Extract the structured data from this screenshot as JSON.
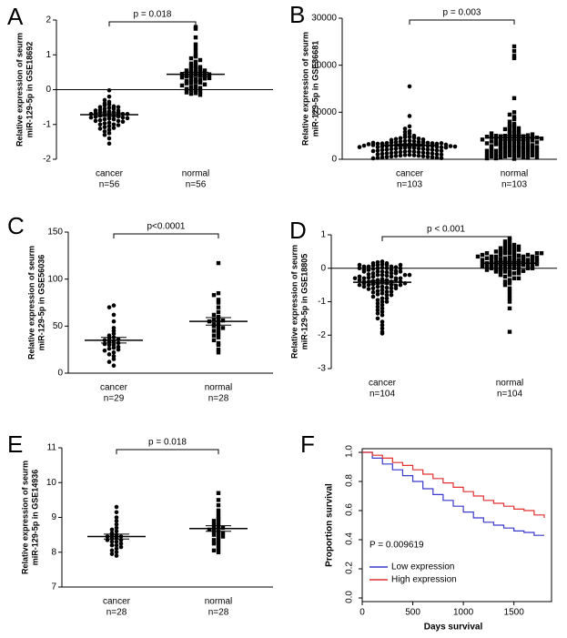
{
  "chart_data": [
    {
      "type": "dotplot",
      "label": "A",
      "ylabel": [
        "Relative expression of seurm",
        "miR-129-5p in GSE18692"
      ],
      "categories": [
        "cancer",
        "normal"
      ],
      "n_labels": [
        "n=56",
        "n=56"
      ],
      "pvalue": "p = 0.018",
      "ylim": [
        -2,
        2
      ],
      "yticks": [
        -2,
        -1,
        0,
        1,
        2
      ],
      "zero_line": true,
      "groups": [
        {
          "mean": -0.72,
          "sem": 0.05,
          "values": [
            -0.02,
            -0.2,
            -0.3,
            -0.35,
            -0.4,
            -0.42,
            -0.45,
            -0.48,
            -0.5,
            -0.5,
            -0.52,
            -0.55,
            -0.55,
            -0.58,
            -0.6,
            -0.6,
            -0.62,
            -0.63,
            -0.65,
            -0.65,
            -0.67,
            -0.68,
            -0.7,
            -0.7,
            -0.7,
            -0.72,
            -0.73,
            -0.75,
            -0.75,
            -0.77,
            -0.78,
            -0.8,
            -0.8,
            -0.82,
            -0.83,
            -0.85,
            -0.85,
            -0.88,
            -0.9,
            -0.9,
            -0.92,
            -0.95,
            -0.97,
            -1.0,
            -1.0,
            -1.02,
            -1.05,
            -1.08,
            -1.1,
            -1.12,
            -1.15,
            -1.2,
            -1.25,
            -1.3,
            -1.4,
            -1.55
          ]
        },
        {
          "mean": 0.44,
          "sem": 0.06,
          "values": [
            1.8,
            1.75,
            1.5,
            1.3,
            1.2,
            1.1,
            1.0,
            0.95,
            0.9,
            0.85,
            0.8,
            0.75,
            0.7,
            0.68,
            0.65,
            0.62,
            0.6,
            0.58,
            0.55,
            0.52,
            0.5,
            0.5,
            0.48,
            0.46,
            0.45,
            0.44,
            0.42,
            0.4,
            0.4,
            0.38,
            0.36,
            0.35,
            0.33,
            0.3,
            0.3,
            0.28,
            0.25,
            0.22,
            0.2,
            0.2,
            0.18,
            0.15,
            0.12,
            0.1,
            0.08,
            0.05,
            0.02,
            0.0,
            -0.02,
            -0.05,
            -0.08,
            -0.1,
            -0.12,
            -0.15,
            0.32,
            0.55
          ]
        }
      ]
    },
    {
      "type": "dotplot",
      "label": "B",
      "ylabel": [
        "Relative expression of seurm",
        "miR-129-5p in GSE36681"
      ],
      "categories": [
        "cancer",
        "normal"
      ],
      "n_labels": [
        "n=103",
        "n=103"
      ],
      "pvalue": "p = 0.003",
      "ylim": [
        0,
        30000
      ],
      "yticks": [
        0,
        10000,
        20000,
        30000
      ],
      "zero_line": false,
      "groups": [
        {
          "mean": 3000,
          "sem": 250,
          "values": [
            15500,
            9200,
            7000,
            6500,
            6000,
            5800,
            5500,
            5200,
            5000,
            4800,
            4700,
            4600,
            4500,
            4400,
            4300,
            4200,
            4100,
            4000,
            3900,
            3850,
            3800,
            3700,
            3650,
            3600,
            3550,
            3500,
            3450,
            3400,
            3350,
            3300,
            3250,
            3200,
            3150,
            3100,
            3050,
            3000,
            2950,
            2900,
            2850,
            2800,
            2750,
            2700,
            2650,
            2600,
            2550,
            2500,
            2450,
            2400,
            2350,
            2300,
            2250,
            2200,
            2150,
            2100,
            2050,
            2000,
            1950,
            1900,
            1850,
            1800,
            1750,
            1700,
            1650,
            1600,
            1550,
            1500,
            1450,
            1400,
            1350,
            1300,
            1250,
            1200,
            1150,
            1100,
            1050,
            1000,
            950,
            900,
            850,
            800,
            750,
            700,
            650,
            600,
            550,
            500,
            450,
            400,
            350,
            300,
            250,
            200,
            3000,
            3100,
            3200,
            2800,
            2900,
            3300,
            2700,
            2600,
            3400,
            2500,
            3500
          ]
        },
        {
          "mean": 4600,
          "sem": 500,
          "values": [
            24000,
            23000,
            22000,
            21500,
            13000,
            10000,
            9500,
            9000,
            8500,
            8000,
            7500,
            7200,
            7000,
            6800,
            6600,
            6400,
            6200,
            6000,
            5800,
            5600,
            5400,
            5200,
            5000,
            4900,
            4800,
            4700,
            4600,
            4500,
            4400,
            4300,
            4200,
            4100,
            4000,
            3900,
            3800,
            3700,
            3600,
            3500,
            3400,
            3300,
            3200,
            3100,
            3000,
            2900,
            2800,
            2700,
            2600,
            2500,
            2400,
            2300,
            2200,
            2100,
            2000,
            1900,
            1800,
            1700,
            1600,
            1500,
            1400,
            1300,
            1200,
            1100,
            1000,
            900,
            800,
            700,
            600,
            500,
            400,
            300,
            200,
            100,
            4500,
            4700,
            4900,
            5100,
            4600,
            4800,
            5000,
            4400,
            4200,
            4000,
            3800,
            3600,
            3400,
            3200,
            3000,
            2800,
            2600,
            2400,
            2200,
            2000,
            1800,
            1600,
            1400,
            1200,
            1000,
            800,
            600,
            400,
            200,
            5300,
            5500
          ]
        }
      ]
    },
    {
      "type": "dotplot",
      "label": "C",
      "ylabel": [
        "Relative expression of seurm",
        "miR-129-5p in GSE56036"
      ],
      "categories": [
        "cancer",
        "normal"
      ],
      "n_labels": [
        "n=29",
        "n=28"
      ],
      "pvalue": "p<0.0001",
      "ylim": [
        0,
        150
      ],
      "yticks": [
        0,
        50,
        100,
        150
      ],
      "zero_line": false,
      "groups": [
        {
          "mean": 35,
          "sem": 3,
          "values": [
            72,
            70,
            62,
            55,
            48,
            45,
            42,
            40,
            38,
            37,
            36,
            35,
            34,
            33,
            32,
            31,
            30,
            30,
            28,
            27,
            26,
            25,
            24,
            22,
            20,
            18,
            15,
            12,
            8
          ]
        },
        {
          "mean": 55,
          "sem": 4,
          "values": [
            117,
            85,
            83,
            78,
            75,
            70,
            65,
            62,
            60,
            58,
            57,
            56,
            55,
            54,
            52,
            50,
            50,
            48,
            46,
            45,
            42,
            40,
            38,
            35,
            32,
            30,
            25,
            22
          ]
        }
      ]
    },
    {
      "type": "dotplot",
      "label": "D",
      "ylabel": [
        "Relative expression of seurm",
        "miR-129-5p in GSE18805"
      ],
      "categories": [
        "cancer",
        "normal"
      ],
      "n_labels": [
        "n=104",
        "n=104"
      ],
      "pvalue": "p < 0.001",
      "ylim": [
        -3,
        1
      ],
      "yticks": [
        -3,
        -2,
        -1,
        0,
        1
      ],
      "zero_line": true,
      "groups": [
        {
          "mean": -0.42,
          "sem": 0.05,
          "values": [
            0.2,
            0.18,
            0.15,
            0.12,
            0.1,
            0.1,
            0.08,
            0.05,
            0.05,
            0.03,
            0.02,
            0.0,
            0.0,
            -0.02,
            -0.05,
            -0.05,
            -0.08,
            -0.1,
            -0.1,
            -0.12,
            -0.15,
            -0.15,
            -0.18,
            -0.2,
            -0.2,
            -0.22,
            -0.25,
            -0.25,
            -0.28,
            -0.3,
            -0.3,
            -0.32,
            -0.35,
            -0.35,
            -0.38,
            -0.4,
            -0.4,
            -0.42,
            -0.45,
            -0.45,
            -0.48,
            -0.5,
            -0.5,
            -0.52,
            -0.55,
            -0.55,
            -0.58,
            -0.6,
            -0.6,
            -0.62,
            -0.65,
            -0.68,
            -0.7,
            -0.72,
            -0.75,
            -0.78,
            -0.8,
            -0.85,
            -0.9,
            -0.95,
            -1.0,
            -1.05,
            -1.1,
            -1.15,
            -1.2,
            -1.25,
            -1.3,
            -1.35,
            -1.4,
            -1.5,
            -1.6,
            -1.7,
            -1.8,
            -1.9,
            -1.95,
            -0.3,
            -0.35,
            -0.4,
            -0.45,
            -0.5,
            -0.25,
            -0.2,
            -0.15,
            -0.1,
            -0.05,
            0.0,
            0.05,
            0.1,
            -0.3,
            -0.4,
            -0.5,
            -0.6,
            -0.7,
            -0.8,
            -0.9,
            -1.0,
            -0.2,
            -0.1,
            0.0,
            0.1,
            0.15,
            -0.35,
            -0.45,
            -0.55
          ]
        },
        {
          "mean": 0.15,
          "sem": 0.05,
          "values": [
            0.9,
            0.85,
            0.8,
            0.75,
            0.7,
            0.7,
            0.65,
            0.6,
            0.6,
            0.55,
            0.5,
            0.5,
            0.45,
            0.45,
            0.4,
            0.4,
            0.38,
            0.35,
            0.35,
            0.32,
            0.3,
            0.3,
            0.28,
            0.25,
            0.25,
            0.22,
            0.2,
            0.2,
            0.18,
            0.15,
            0.15,
            0.12,
            0.1,
            0.1,
            0.08,
            0.05,
            0.05,
            0.02,
            0.0,
            0.0,
            -0.02,
            -0.05,
            -0.05,
            -0.08,
            -0.1,
            -0.1,
            -0.15,
            -0.2,
            -0.25,
            -0.3,
            -0.35,
            -0.4,
            -0.45,
            -0.5,
            -0.6,
            -0.7,
            -0.8,
            -0.9,
            -1.0,
            -1.2,
            -1.9,
            0.3,
            0.25,
            0.2,
            0.15,
            0.1,
            0.05,
            0.0,
            0.35,
            0.4,
            0.45,
            0.5,
            0.55,
            0.6,
            0.65,
            0.2,
            0.15,
            0.1,
            0.05,
            0.0,
            -0.05,
            -0.1,
            -0.15,
            0.25,
            0.3,
            0.35,
            0.4,
            0.45,
            0.5,
            0.1,
            0.2,
            0.3,
            0.0,
            -0.2,
            -0.3,
            0.15,
            0.25,
            0.35,
            0.45,
            0.05,
            -0.1,
            0.12,
            0.22,
            0.32
          ]
        }
      ]
    },
    {
      "type": "dotplot",
      "label": "E",
      "ylabel": [
        "Relative expression of seurm",
        "miR-129-5p in GSE14936"
      ],
      "categories": [
        "cancer",
        "normal"
      ],
      "n_labels": [
        "n=28",
        "n=28"
      ],
      "pvalue": "p = 0.018",
      "ylim": [
        7,
        11
      ],
      "yticks": [
        7,
        8,
        9,
        10,
        11
      ],
      "zero_line": false,
      "groups": [
        {
          "mean": 8.45,
          "sem": 0.07,
          "values": [
            9.3,
            9.15,
            9.0,
            8.9,
            8.8,
            8.7,
            8.65,
            8.6,
            8.55,
            8.5,
            8.5,
            8.45,
            8.45,
            8.4,
            8.4,
            8.35,
            8.35,
            8.3,
            8.3,
            8.25,
            8.2,
            8.2,
            8.15,
            8.1,
            8.05,
            8.0,
            7.95,
            7.9
          ]
        },
        {
          "mean": 8.68,
          "sem": 0.08,
          "values": [
            9.7,
            9.5,
            9.35,
            9.2,
            9.1,
            9.0,
            8.95,
            8.9,
            8.85,
            8.8,
            8.75,
            8.7,
            8.7,
            8.65,
            8.6,
            8.6,
            8.55,
            8.5,
            8.5,
            8.45,
            8.4,
            8.35,
            8.3,
            8.25,
            8.2,
            8.1,
            8.05,
            8.0
          ]
        }
      ]
    },
    {
      "type": "line",
      "label": "F",
      "xlabel": "Days survival",
      "ylabel": "Proportion survival",
      "annotation": "P = 0.009619",
      "xlim": [
        0,
        1800
      ],
      "xticks": [
        0,
        500,
        1000,
        1500
      ],
      "ylim": [
        0,
        1
      ],
      "yticks": [
        {
          "value": 0,
          "label": "0.0"
        },
        {
          "value": 0.2,
          "label": "0.2"
        },
        {
          "value": 0.4,
          "label": "0.4"
        },
        {
          "value": 0.6,
          "label": "0.6"
        },
        {
          "value": 0.8,
          "label": "0.8"
        },
        {
          "value": 1,
          "label": "1.0"
        }
      ],
      "series": [
        {
          "name": "Low expression",
          "color": "#3a3acc",
          "x": [
            0,
            100,
            200,
            300,
            400,
            500,
            600,
            700,
            800,
            900,
            1000,
            1100,
            1200,
            1300,
            1400,
            1500,
            1600,
            1700,
            1800
          ],
          "values": [
            1,
            0.96,
            0.92,
            0.88,
            0.84,
            0.8,
            0.75,
            0.71,
            0.67,
            0.63,
            0.59,
            0.55,
            0.52,
            0.5,
            0.48,
            0.46,
            0.45,
            0.43,
            0.43
          ]
        },
        {
          "name": "High expression",
          "color": "#e03030",
          "x": [
            0,
            100,
            200,
            300,
            400,
            500,
            600,
            700,
            800,
            900,
            1000,
            1100,
            1200,
            1300,
            1400,
            1500,
            1600,
            1700,
            1800
          ],
          "values": [
            1,
            0.98,
            0.96,
            0.93,
            0.91,
            0.88,
            0.85,
            0.82,
            0.79,
            0.76,
            0.73,
            0.7,
            0.67,
            0.65,
            0.63,
            0.61,
            0.6,
            0.57,
            0.55
          ]
        }
      ]
    }
  ]
}
